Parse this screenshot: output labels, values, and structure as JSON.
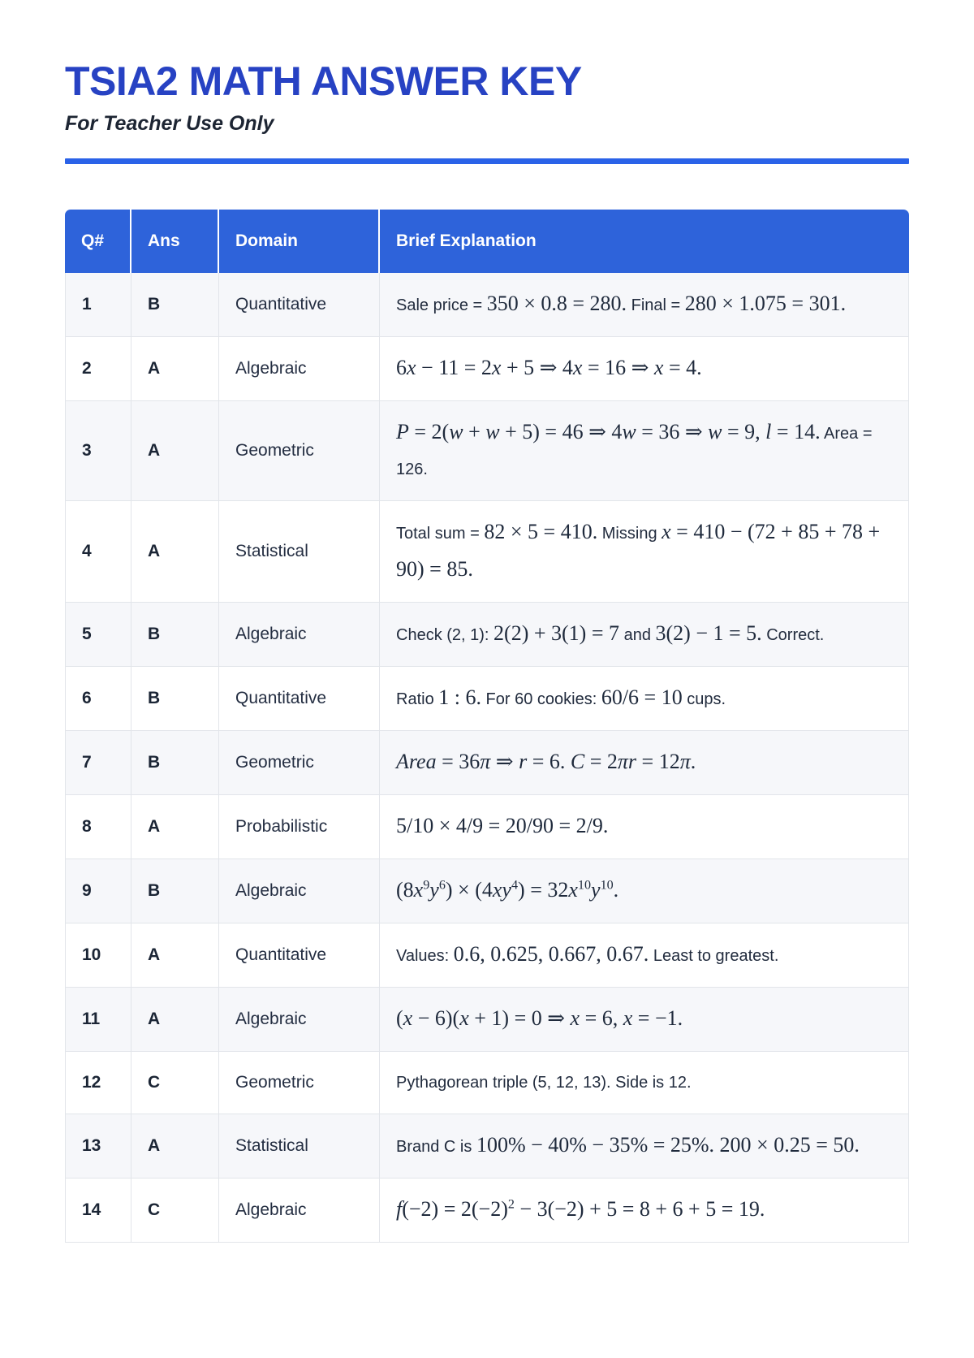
{
  "page": {
    "title": "TSIA2 MATH ANSWER KEY",
    "subtitle": "For Teacher Use Only"
  },
  "colors": {
    "title_blue": "#2742c3",
    "divider_blue": "#2a62e8",
    "header_background": "#2e63da",
    "header_text": "#ffffff",
    "alt_row_background": "#f6f7fa",
    "border_gray": "#e2e5ea",
    "body_text": "#202b3d"
  },
  "table": {
    "columns": [
      {
        "key": "q-number",
        "label": "Q#"
      },
      {
        "key": "answer",
        "label": "Ans"
      },
      {
        "key": "domain",
        "label": "Domain"
      },
      {
        "key": "brief-explanation",
        "label": "Brief Explanation"
      }
    ],
    "rows": [
      {
        "q": "1",
        "ans": "B",
        "domain": "Quantitative",
        "explanation": [
          {
            "type": "text",
            "value": "Sale price = "
          },
          {
            "type": "math",
            "value": "350 × 0.8 = 280."
          },
          {
            "type": "text",
            "value": " Final = "
          },
          {
            "type": "math",
            "value": "280 × 1.075 = 301."
          }
        ]
      },
      {
        "q": "2",
        "ans": "A",
        "domain": "Algebraic",
        "explanation": [
          {
            "type": "math",
            "value": "6x − 11 = 2x + 5 ⇒ 4x = 16 ⇒ x = 4."
          }
        ]
      },
      {
        "q": "3",
        "ans": "A",
        "domain": "Geometric",
        "explanation": [
          {
            "type": "math",
            "value": "P = 2(w + w + 5) = 46 ⇒ 4w = 36 ⇒ w = 9, l = 14."
          },
          {
            "type": "text",
            "value": " Area = 126."
          }
        ]
      },
      {
        "q": "4",
        "ans": "A",
        "domain": "Statistical",
        "explanation": [
          {
            "type": "text",
            "value": "Total sum = "
          },
          {
            "type": "math",
            "value": "82 × 5 = 410."
          },
          {
            "type": "text",
            "value": " Missing "
          },
          {
            "type": "math",
            "value": "x = 410 − (72 + 85 + 78 + 90) = 85."
          }
        ]
      },
      {
        "q": "5",
        "ans": "B",
        "domain": "Algebraic",
        "explanation": [
          {
            "type": "text",
            "value": "Check (2, 1): "
          },
          {
            "type": "math",
            "value": "2(2) + 3(1) = 7"
          },
          {
            "type": "text",
            "value": " and "
          },
          {
            "type": "math",
            "value": "3(2) − 1 = 5."
          },
          {
            "type": "text",
            "value": " Correct."
          }
        ]
      },
      {
        "q": "6",
        "ans": "B",
        "domain": "Quantitative",
        "explanation": [
          {
            "type": "text",
            "value": "Ratio "
          },
          {
            "type": "math",
            "value": "1 : 6."
          },
          {
            "type": "text",
            "value": " For 60 cookies: "
          },
          {
            "type": "math",
            "value": "60/6 = 10"
          },
          {
            "type": "text",
            "value": " cups."
          }
        ]
      },
      {
        "q": "7",
        "ans": "B",
        "domain": "Geometric",
        "explanation": [
          {
            "type": "math",
            "value": "Area = 36π ⇒ r = 6. C = 2πr = 12π."
          }
        ]
      },
      {
        "q": "8",
        "ans": "A",
        "domain": "Probabilistic",
        "explanation": [
          {
            "type": "math",
            "value": "5/10 × 4/9 = 20/90 = 2/9."
          }
        ]
      },
      {
        "q": "9",
        "ans": "B",
        "domain": "Algebraic",
        "explanation": [
          {
            "type": "math",
            "value": "(8x^{9}y^{6}) × (4xy^{4}) = 32x^{10}y^{10}."
          }
        ]
      },
      {
        "q": "10",
        "ans": "A",
        "domain": "Quantitative",
        "explanation": [
          {
            "type": "text",
            "value": "Values: "
          },
          {
            "type": "math",
            "value": "0.6, 0.625, 0.667, 0.67."
          },
          {
            "type": "text",
            "value": " Least to greatest."
          }
        ]
      },
      {
        "q": "11",
        "ans": "A",
        "domain": "Algebraic",
        "explanation": [
          {
            "type": "math",
            "value": "(x − 6)(x + 1) = 0 ⇒ x = 6, x = −1."
          }
        ]
      },
      {
        "q": "12",
        "ans": "C",
        "domain": "Geometric",
        "explanation": [
          {
            "type": "text",
            "value": "Pythagorean triple (5, 12, 13). Side is 12."
          }
        ]
      },
      {
        "q": "13",
        "ans": "A",
        "domain": "Statistical",
        "explanation": [
          {
            "type": "text",
            "value": "Brand C is "
          },
          {
            "type": "math",
            "value": "100% − 40% − 35% = 25%. 200 × 0.25 = 50."
          }
        ]
      },
      {
        "q": "14",
        "ans": "C",
        "domain": "Algebraic",
        "explanation": [
          {
            "type": "math",
            "value": "f(−2) = 2(−2)^{2} − 3(−2) + 5 = 8 + 6 + 5 = 19."
          }
        ]
      }
    ]
  }
}
